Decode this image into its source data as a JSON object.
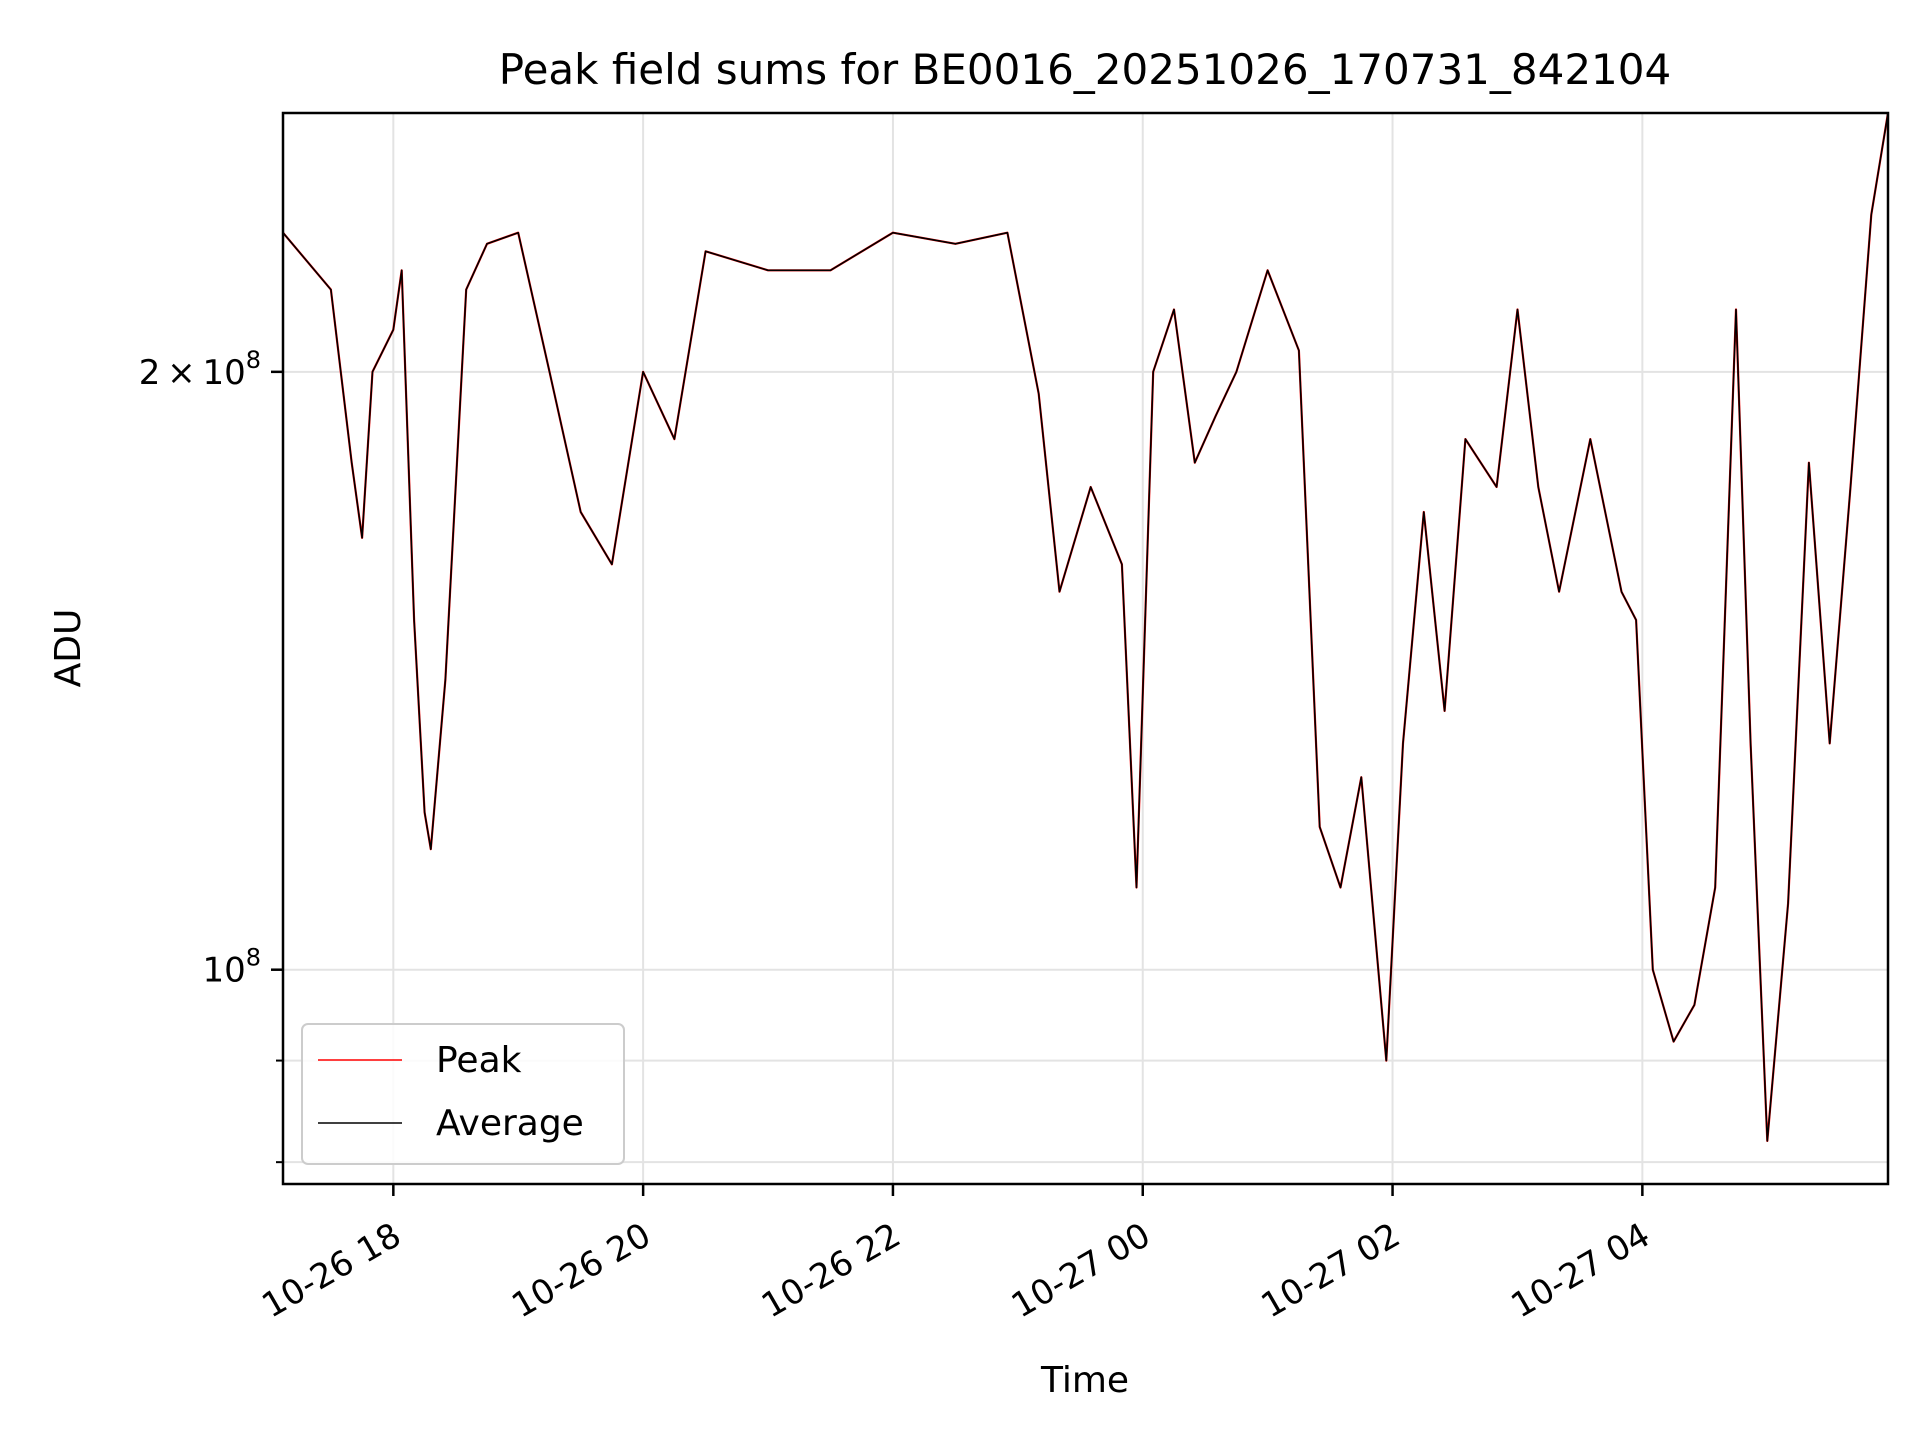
{
  "chart_data": {
    "type": "line",
    "title": "Peak field sums for BE0016_20251026_170731_842104",
    "xlabel": "Time",
    "ylabel": "ADU",
    "x_tick_labels": [
      "10-26 18",
      "10-26 20",
      "10-26 22",
      "10-27 00",
      "10-27 02",
      "10-27 04"
    ],
    "y_tick_labels": {
      "major": [
        {
          "value": 100000000,
          "base": "10",
          "exp": "8"
        },
        {
          "value": 200000000,
          "mult": "2",
          "base": "10",
          "exp": "8"
        }
      ]
    },
    "yscale": "log",
    "xlim": [
      "2025-10-26 17:07",
      "2025-10-27 05:58"
    ],
    "ylim": [
      78000000,
      270000000
    ],
    "grid": true,
    "legend": {
      "placement": "lower-left"
    },
    "x": [
      "2025-10-26 17:07",
      "2025-10-26 17:30",
      "2025-10-26 17:40",
      "2025-10-26 17:45",
      "2025-10-26 17:50",
      "2025-10-26 18:00",
      "2025-10-26 18:04",
      "2025-10-26 18:10",
      "2025-10-26 18:15",
      "2025-10-26 18:18",
      "2025-10-26 18:25",
      "2025-10-26 18:35",
      "2025-10-26 18:45",
      "2025-10-26 19:00",
      "2025-10-26 19:15",
      "2025-10-26 19:30",
      "2025-10-26 19:45",
      "2025-10-26 20:00",
      "2025-10-26 20:15",
      "2025-10-26 20:30",
      "2025-10-26 21:00",
      "2025-10-26 21:30",
      "2025-10-26 22:00",
      "2025-10-26 22:30",
      "2025-10-26 22:55",
      "2025-10-26 23:10",
      "2025-10-26 23:20",
      "2025-10-26 23:35",
      "2025-10-26 23:50",
      "2025-10-26 23:57",
      "2025-10-27 00:05",
      "2025-10-27 00:15",
      "2025-10-27 00:25",
      "2025-10-27 00:35",
      "2025-10-27 00:45",
      "2025-10-27 01:00",
      "2025-10-27 01:15",
      "2025-10-27 01:25",
      "2025-10-27 01:35",
      "2025-10-27 01:45",
      "2025-10-27 01:57",
      "2025-10-27 02:05",
      "2025-10-27 02:15",
      "2025-10-27 02:25",
      "2025-10-27 02:35",
      "2025-10-27 02:50",
      "2025-10-27 03:00",
      "2025-10-27 03:10",
      "2025-10-27 03:20",
      "2025-10-27 03:35",
      "2025-10-27 03:50",
      "2025-10-27 03:57",
      "2025-10-27 04:05",
      "2025-10-27 04:15",
      "2025-10-27 04:25",
      "2025-10-27 04:35",
      "2025-10-27 04:45",
      "2025-10-27 04:52",
      "2025-10-27 05:00",
      "2025-10-27 05:10",
      "2025-10-27 05:20",
      "2025-10-27 05:30",
      "2025-10-27 05:40",
      "2025-10-27 05:50",
      "2025-10-27 05:58"
    ],
    "series": [
      {
        "name": "Peak",
        "color": "#ff0000",
        "values": [
          235000000,
          220000000,
          180000000,
          165000000,
          200000000,
          210000000,
          225000000,
          150000000,
          120000000,
          115000000,
          140000000,
          220000000,
          232000000,
          235000000,
          200000000,
          170000000,
          160000000,
          200000000,
          185000000,
          230000000,
          225000000,
          225000000,
          235000000,
          232000000,
          235000000,
          195000000,
          155000000,
          175000000,
          160000000,
          110000000,
          200000000,
          215000000,
          180000000,
          190000000,
          200000000,
          225000000,
          205000000,
          118000000,
          110000000,
          125000000,
          90000000,
          130000000,
          170000000,
          135000000,
          185000000,
          175000000,
          215000000,
          175000000,
          155000000,
          185000000,
          155000000,
          150000000,
          100000000,
          92000000,
          96000000,
          110000000,
          215000000,
          130000000,
          82000000,
          108000000,
          180000000,
          130000000,
          175000000,
          240000000,
          270000000
        ]
      },
      {
        "name": "Average",
        "color": "#000000",
        "values": [
          235000000,
          220000000,
          180000000,
          165000000,
          200000000,
          210000000,
          225000000,
          150000000,
          120000000,
          115000000,
          140000000,
          220000000,
          232000000,
          235000000,
          200000000,
          170000000,
          160000000,
          200000000,
          185000000,
          230000000,
          225000000,
          225000000,
          235000000,
          232000000,
          235000000,
          195000000,
          155000000,
          175000000,
          160000000,
          110000000,
          200000000,
          215000000,
          180000000,
          190000000,
          200000000,
          225000000,
          205000000,
          118000000,
          110000000,
          125000000,
          90000000,
          130000000,
          170000000,
          135000000,
          185000000,
          175000000,
          215000000,
          175000000,
          155000000,
          185000000,
          155000000,
          150000000,
          100000000,
          92000000,
          96000000,
          110000000,
          215000000,
          130000000,
          82000000,
          108000000,
          180000000,
          130000000,
          175000000,
          240000000,
          270000000
        ]
      }
    ]
  }
}
